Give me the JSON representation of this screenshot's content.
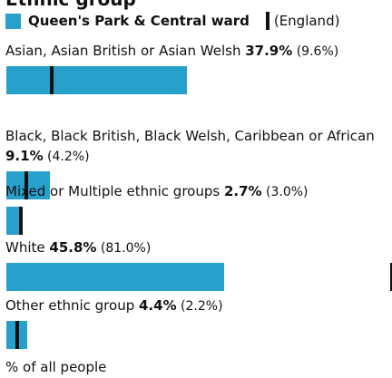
{
  "heading_fragment": "Ethnic group",
  "legend": {
    "area_name": "Queen's Park & Central ward",
    "comparison_name": "(England)"
  },
  "colors": {
    "bar": "#27a0cc",
    "marker": "#111111"
  },
  "axis_label": "% of all people",
  "chart_data": {
    "type": "bar",
    "orientation": "horizontal",
    "xlabel": "% of all people",
    "xlim": [
      0,
      81
    ],
    "categories": [
      "Asian, Asian British or Asian Welsh",
      "Black, Black British, Black Welsh, Caribbean or African",
      "Mixed or Multiple ethnic groups",
      "White",
      "Other ethnic group"
    ],
    "series": [
      {
        "name": "Queen's Park & Central ward",
        "values": [
          37.9,
          9.1,
          2.7,
          45.8,
          4.4
        ]
      },
      {
        "name": "England",
        "values": [
          9.6,
          4.2,
          3.0,
          81.0,
          2.2
        ]
      }
    ],
    "value_labels": [
      "37.9%",
      "9.1%",
      "2.7%",
      "45.8%",
      "4.4%"
    ],
    "comparison_labels": [
      "(9.6%)",
      "(4.2%)",
      "(3.0%)",
      "(81.0%)",
      "(2.2%)"
    ]
  }
}
